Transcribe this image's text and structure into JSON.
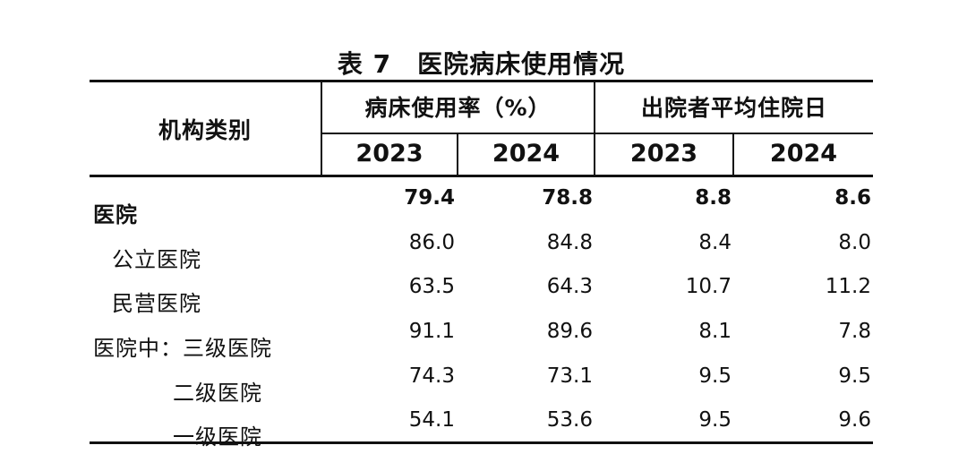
{
  "title": "表 7　医院病床使用情况",
  "table": {
    "stub_header": "机构类别",
    "col_groups": [
      {
        "label": "病床使用率（%）",
        "sub_headers": [
          "2023",
          "2024"
        ]
      },
      {
        "label": "出院者平均住院日",
        "sub_headers": [
          "2023",
          "2024"
        ]
      }
    ],
    "rows": [
      {
        "label": "医院",
        "indent": 0,
        "bold": true,
        "values": [
          "79.4",
          "78.8",
          "8.8",
          "8.6"
        ]
      },
      {
        "label": "公立医院",
        "indent": 1,
        "bold": false,
        "values": [
          "86.0",
          "84.8",
          "8.4",
          "8.0"
        ]
      },
      {
        "label": "民营医院",
        "indent": 1,
        "bold": false,
        "values": [
          "63.5",
          "64.3",
          "10.7",
          "11.2"
        ]
      },
      {
        "label": "医院中：三级医院",
        "indent": 0,
        "bold": false,
        "values": [
          "91.1",
          "89.6",
          "8.1",
          "7.8"
        ]
      },
      {
        "label": "二级医院",
        "indent": 2,
        "bold": false,
        "values": [
          "74.3",
          "73.1",
          "9.5",
          "9.5"
        ]
      },
      {
        "label": "一级医院",
        "indent": 2,
        "bold": false,
        "values": [
          "54.1",
          "53.6",
          "9.5",
          "9.6"
        ]
      }
    ]
  },
  "colors": {
    "text": "#111111",
    "border": "#111111",
    "background": "#ffffff"
  }
}
